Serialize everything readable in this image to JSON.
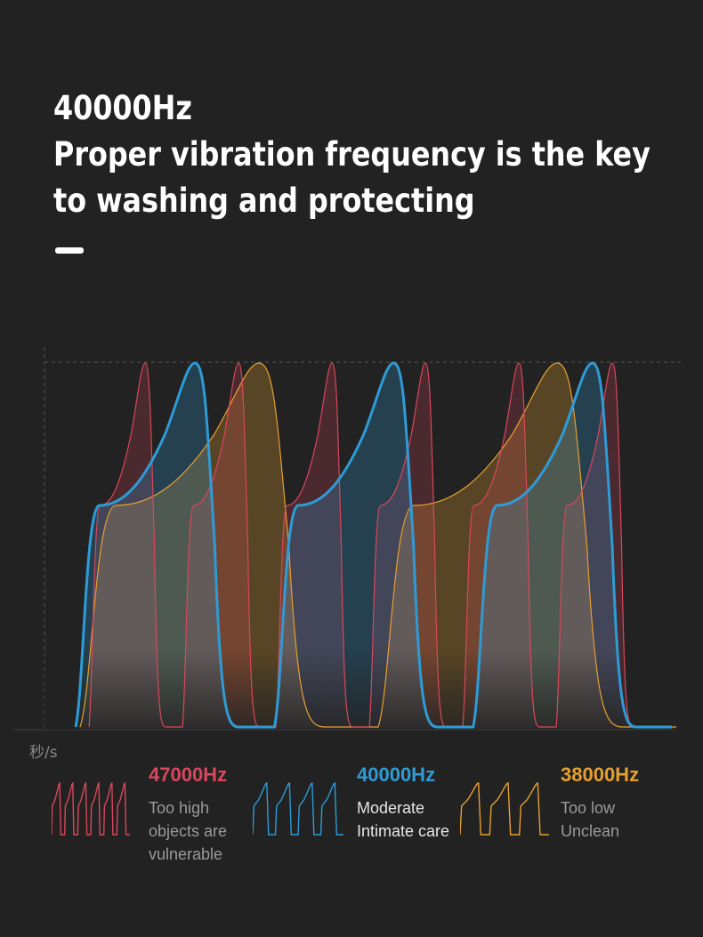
{
  "heading": {
    "line1": "40000Hz",
    "line2": "Proper vibration frequency is the key",
    "line3": "to washing and protecting"
  },
  "chart_data": {
    "type": "area",
    "xlabel": "秒/s",
    "series": [
      {
        "name": "47000Hz",
        "color": "#d9475c",
        "peaks": 6,
        "line1": "Too high",
        "line2": "objects are",
        "line3": "vulnerable"
      },
      {
        "name": "40000Hz",
        "color": "#2e9bd6",
        "peaks": 3,
        "line1": "Moderate",
        "line2": "Intimate care"
      },
      {
        "name": "38000Hz",
        "color": "#e5a030",
        "peaks": 2,
        "line1": "Too low",
        "line2": "Unclean"
      }
    ],
    "grid": false
  }
}
